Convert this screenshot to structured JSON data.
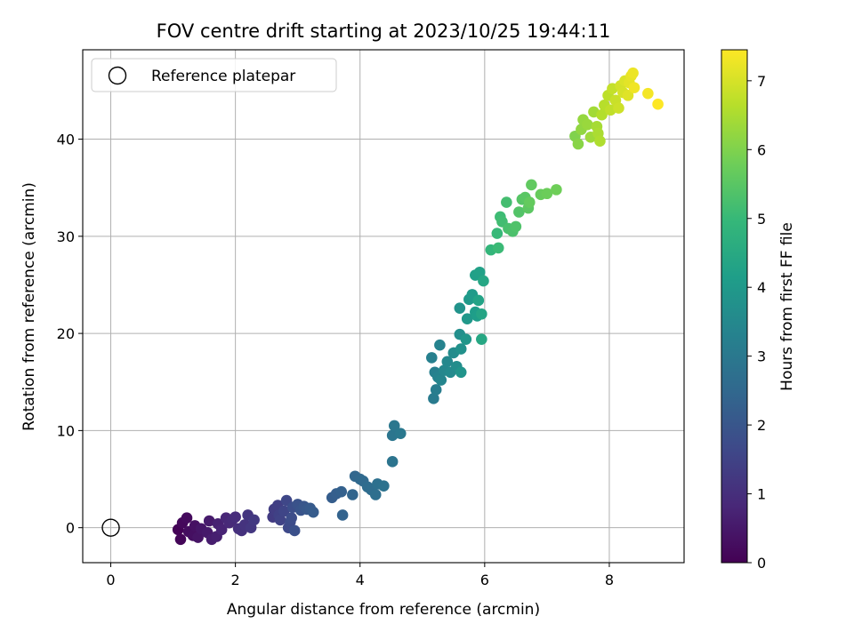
{
  "chart_data": {
    "type": "scatter",
    "title": "FOV centre drift starting at 2023/10/25 19:44:11",
    "xlabel": "Angular distance from reference (arcmin)",
    "ylabel": "Rotation from reference (arcmin)",
    "xlim": [
      -0.45,
      9.2
    ],
    "ylim": [
      -3.6,
      49.2
    ],
    "xticks": [
      "0",
      "2",
      "4",
      "6",
      "8"
    ],
    "yticks": [
      "0",
      "10",
      "20",
      "30",
      "40"
    ],
    "grid": true,
    "legend": {
      "placement": "top-left",
      "entries": [
        "Reference platepar"
      ]
    },
    "reference_point": {
      "x": 0,
      "y": 0
    },
    "colorbar": {
      "label": "Hours from first FF file",
      "range": [
        0,
        7.45
      ],
      "ticks": [
        "0",
        "1",
        "2",
        "3",
        "4",
        "5",
        "6",
        "7"
      ],
      "colormap": "viridis"
    },
    "colors": {
      "viridis": [
        "#440154",
        "#482878",
        "#3e4989",
        "#31688e",
        "#26828e",
        "#1f9e89",
        "#35b779",
        "#6ece58",
        "#b5de2b",
        "#fde725"
      ]
    },
    "points": [
      [
        1.08,
        -0.2,
        0.05
      ],
      [
        1.12,
        -1.2,
        0.1
      ],
      [
        1.15,
        0.5,
        0.15
      ],
      [
        1.22,
        1.0,
        0.2
      ],
      [
        1.25,
        -0.4,
        0.25
      ],
      [
        1.32,
        -0.8,
        0.3
      ],
      [
        1.35,
        0.2,
        0.35
      ],
      [
        1.4,
        -1.0,
        0.4
      ],
      [
        1.45,
        -0.1,
        0.45
      ],
      [
        1.55,
        -0.5,
        0.5
      ],
      [
        1.58,
        0.7,
        0.55
      ],
      [
        1.62,
        -1.2,
        0.6
      ],
      [
        1.7,
        -0.9,
        0.65
      ],
      [
        1.72,
        0.4,
        0.7
      ],
      [
        1.78,
        -0.2,
        0.75
      ],
      [
        1.85,
        1.0,
        0.8
      ],
      [
        1.9,
        0.5,
        0.85
      ],
      [
        1.95,
        0.8,
        0.9
      ],
      [
        2.0,
        1.1,
        0.95
      ],
      [
        2.05,
        -0.1,
        1.0
      ],
      [
        2.1,
        -0.3,
        1.05
      ],
      [
        2.15,
        0.3,
        1.1
      ],
      [
        2.2,
        1.3,
        1.15
      ],
      [
        2.25,
        0.0,
        1.2
      ],
      [
        2.3,
        0.8,
        1.25
      ],
      [
        2.6,
        1.1,
        1.3
      ],
      [
        2.62,
        1.9,
        1.35
      ],
      [
        2.68,
        2.3,
        1.4
      ],
      [
        2.7,
        1.3,
        1.45
      ],
      [
        2.72,
        0.8,
        1.5
      ],
      [
        2.78,
        1.7,
        1.55
      ],
      [
        2.82,
        2.8,
        1.6
      ],
      [
        2.85,
        0.0,
        1.65
      ],
      [
        2.88,
        0.6,
        1.7
      ],
      [
        2.9,
        1.0,
        1.75
      ],
      [
        2.92,
        2.1,
        1.8
      ],
      [
        2.95,
        -0.3,
        1.85
      ],
      [
        3.0,
        2.4,
        1.9
      ],
      [
        3.05,
        1.8,
        1.95
      ],
      [
        3.1,
        2.2,
        2.0
      ],
      [
        3.15,
        1.9,
        2.05
      ],
      [
        3.2,
        2.0,
        2.1
      ],
      [
        3.25,
        1.6,
        2.15
      ],
      [
        3.55,
        3.1,
        2.2
      ],
      [
        3.62,
        3.5,
        2.25
      ],
      [
        3.7,
        3.7,
        2.3
      ],
      [
        3.72,
        1.3,
        2.35
      ],
      [
        3.88,
        3.4,
        2.4
      ],
      [
        3.92,
        5.3,
        2.45
      ],
      [
        4.0,
        5.0,
        2.5
      ],
      [
        4.05,
        4.8,
        2.55
      ],
      [
        4.12,
        4.2,
        2.6
      ],
      [
        4.18,
        3.9,
        2.65
      ],
      [
        4.25,
        3.4,
        2.7
      ],
      [
        4.28,
        4.5,
        2.75
      ],
      [
        4.38,
        4.3,
        2.8
      ],
      [
        4.52,
        6.8,
        2.85
      ],
      [
        4.52,
        9.5,
        2.9
      ],
      [
        4.55,
        10.5,
        2.95
      ],
      [
        4.65,
        9.7,
        3.0
      ],
      [
        5.18,
        13.3,
        3.1
      ],
      [
        5.22,
        14.2,
        3.15
      ],
      [
        5.2,
        16.0,
        3.2
      ],
      [
        5.15,
        17.5,
        3.25
      ],
      [
        5.25,
        15.5,
        3.3
      ],
      [
        5.28,
        18.8,
        3.35
      ],
      [
        5.3,
        15.2,
        3.4
      ],
      [
        5.35,
        16.2,
        3.45
      ],
      [
        5.4,
        17.1,
        3.5
      ],
      [
        5.45,
        16.0,
        3.55
      ],
      [
        5.5,
        18.0,
        3.6
      ],
      [
        5.55,
        16.6,
        3.65
      ],
      [
        5.6,
        19.9,
        3.7
      ],
      [
        5.62,
        18.4,
        3.75
      ],
      [
        5.6,
        22.6,
        3.8
      ],
      [
        5.62,
        16.0,
        3.85
      ],
      [
        5.7,
        19.4,
        3.9
      ],
      [
        5.72,
        21.5,
        3.95
      ],
      [
        5.75,
        23.5,
        4.0
      ],
      [
        5.8,
        24.0,
        4.05
      ],
      [
        5.85,
        22.2,
        4.1
      ],
      [
        5.88,
        21.8,
        4.15
      ],
      [
        5.85,
        26.0,
        4.2
      ],
      [
        5.92,
        26.3,
        4.25
      ],
      [
        5.9,
        23.4,
        4.3
      ],
      [
        5.95,
        22.0,
        4.35
      ],
      [
        5.98,
        25.4,
        4.4
      ],
      [
        5.95,
        19.4,
        4.45
      ],
      [
        6.1,
        28.6,
        4.9
      ],
      [
        6.2,
        30.3,
        5.0
      ],
      [
        6.22,
        28.8,
        5.05
      ],
      [
        6.25,
        32.0,
        5.1
      ],
      [
        6.28,
        31.5,
        5.15
      ],
      [
        6.35,
        33.5,
        5.2
      ],
      [
        6.38,
        30.8,
        5.25
      ],
      [
        6.45,
        30.5,
        5.3
      ],
      [
        6.5,
        31.0,
        5.35
      ],
      [
        6.55,
        32.5,
        5.4
      ],
      [
        6.6,
        33.8,
        5.45
      ],
      [
        6.65,
        34.0,
        5.5
      ],
      [
        6.7,
        32.9,
        5.55
      ],
      [
        6.75,
        35.3,
        5.6
      ],
      [
        6.72,
        33.5,
        5.65
      ],
      [
        6.9,
        34.3,
        5.7
      ],
      [
        7.0,
        34.4,
        5.75
      ],
      [
        7.15,
        34.8,
        5.8
      ],
      [
        7.45,
        40.3,
        6.0
      ],
      [
        7.5,
        39.5,
        6.1
      ],
      [
        7.55,
        41.0,
        6.2
      ],
      [
        7.58,
        42.0,
        6.25
      ],
      [
        7.65,
        41.5,
        6.3
      ],
      [
        7.7,
        40.2,
        6.35
      ],
      [
        7.75,
        42.8,
        6.4
      ],
      [
        7.8,
        41.3,
        6.45
      ],
      [
        7.82,
        40.6,
        6.5
      ],
      [
        7.85,
        39.8,
        6.55
      ],
      [
        7.88,
        42.5,
        6.6
      ],
      [
        7.92,
        43.5,
        6.65
      ],
      [
        7.98,
        44.5,
        6.7
      ],
      [
        8.02,
        43.0,
        6.75
      ],
      [
        8.05,
        45.2,
        6.8
      ],
      [
        8.1,
        44.0,
        6.85
      ],
      [
        8.15,
        43.2,
        6.9
      ],
      [
        8.18,
        45.5,
        6.95
      ],
      [
        8.22,
        44.8,
        7.0
      ],
      [
        8.25,
        46.0,
        7.05
      ],
      [
        8.3,
        44.5,
        7.1
      ],
      [
        8.32,
        45.8,
        7.15
      ],
      [
        8.35,
        46.5,
        7.2
      ],
      [
        8.38,
        46.8,
        7.25
      ],
      [
        8.4,
        45.3,
        7.3
      ],
      [
        8.62,
        44.7,
        7.35
      ],
      [
        8.78,
        43.6,
        7.45
      ]
    ]
  }
}
